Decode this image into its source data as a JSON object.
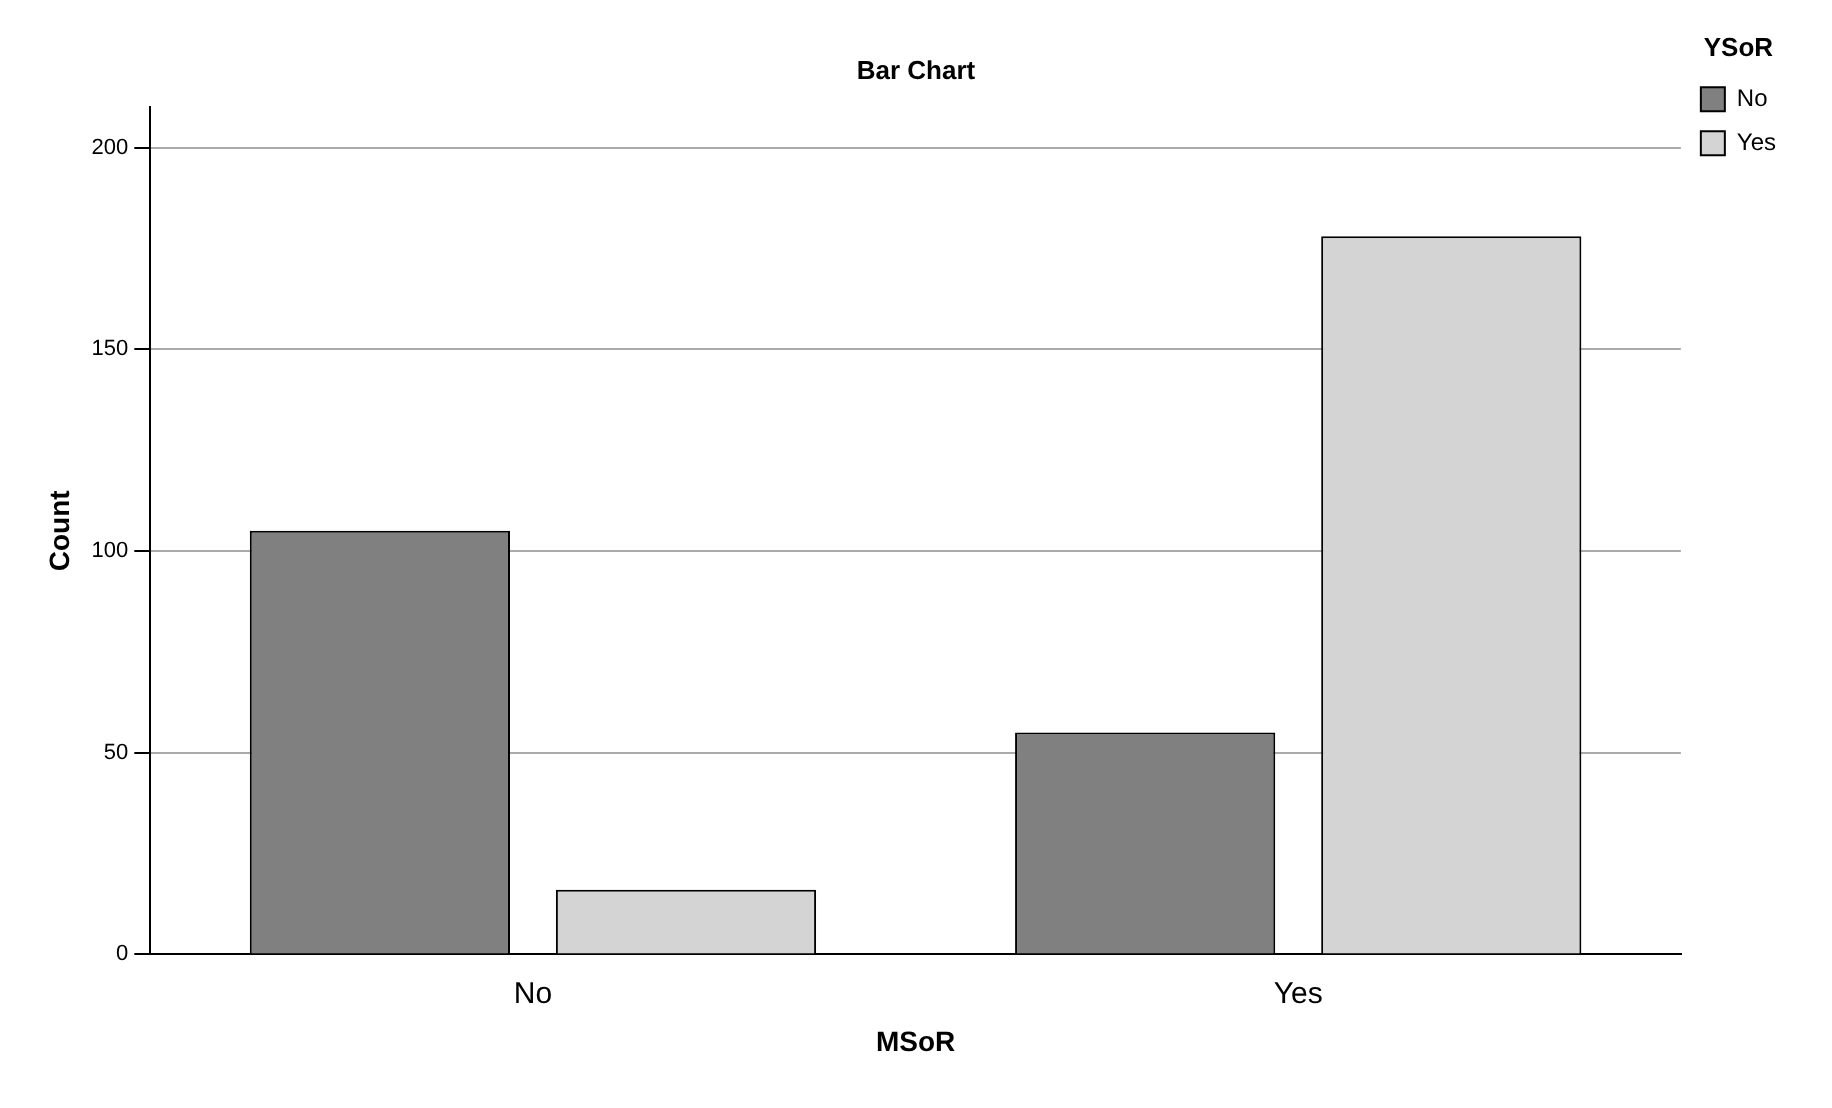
{
  "chart_data": {
    "type": "bar",
    "title": "Bar Chart",
    "xlabel": "MSoR",
    "ylabel": "Count",
    "legend_title": "YSoR",
    "categories": [
      "No",
      "Yes"
    ],
    "series": [
      {
        "name": "No",
        "color": "#808080",
        "values": [
          105,
          55
        ]
      },
      {
        "name": "Yes",
        "color": "#d4d4d4",
        "values": [
          16,
          178
        ]
      }
    ],
    "ylim": [
      0,
      210
    ],
    "yticks": [
      0,
      50,
      100,
      150,
      200
    ],
    "grid": "y",
    "legend": "top right"
  }
}
